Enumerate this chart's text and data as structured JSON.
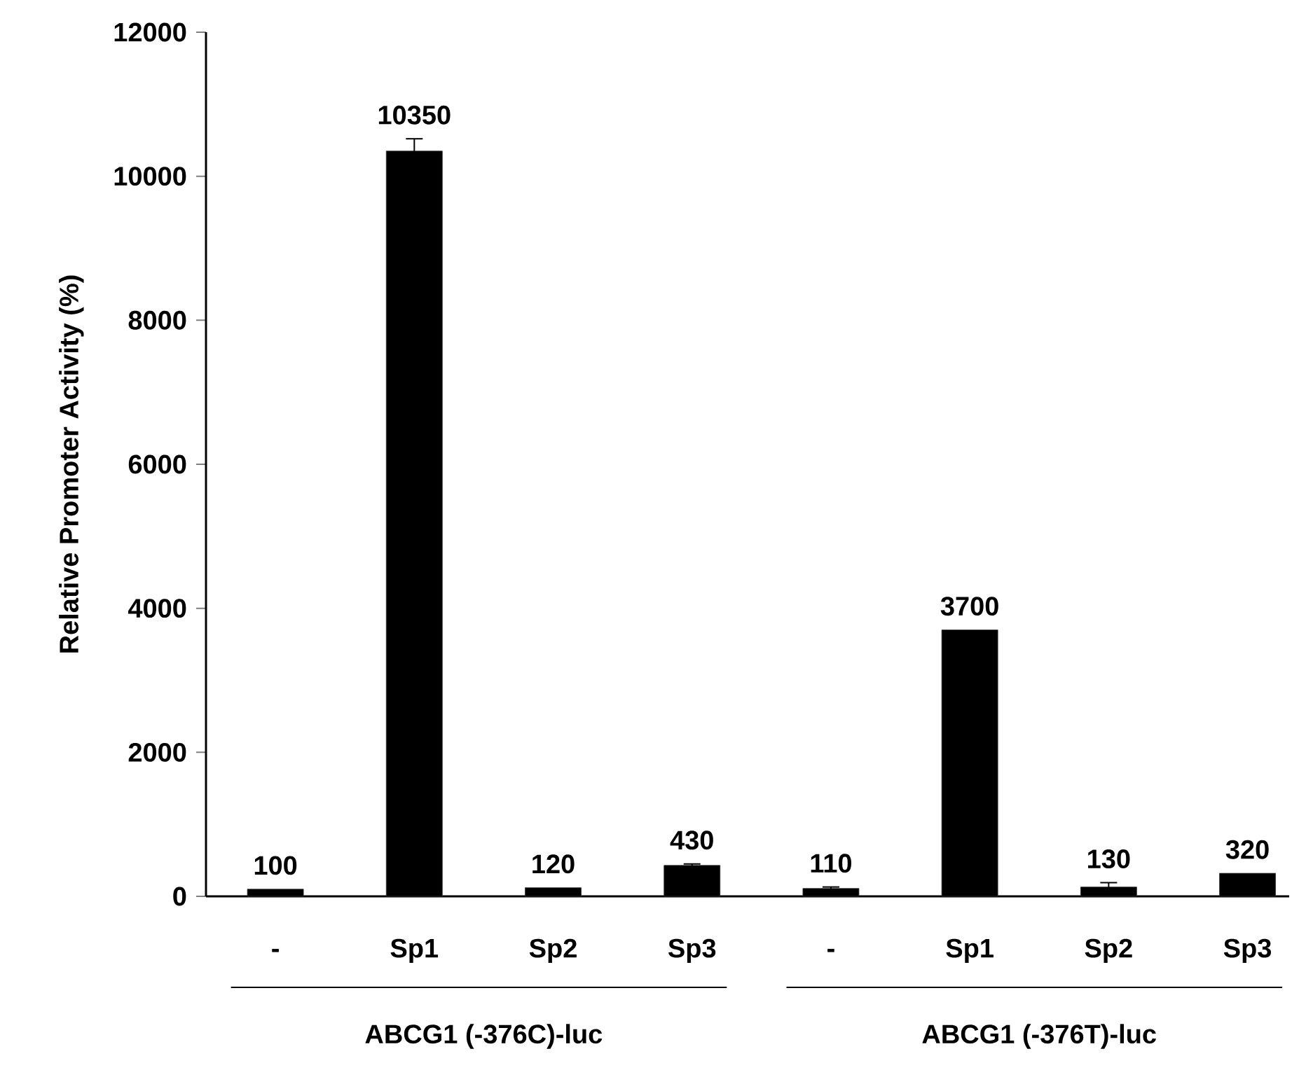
{
  "chart_data": {
    "type": "bar",
    "ylabel": "Relative Promoter Activity (%)",
    "categories": [
      "-",
      "Sp1",
      "Sp2",
      "Sp3",
      "-",
      "Sp1",
      "Sp2",
      "Sp3"
    ],
    "values": [
      100,
      10350,
      120,
      430,
      110,
      3700,
      130,
      320
    ],
    "errors": [
      null,
      170,
      null,
      20,
      20,
      null,
      60,
      null
    ],
    "color": "#000000",
    "ylim": [
      0,
      12000
    ],
    "yticks": [
      0,
      2000,
      4000,
      6000,
      8000,
      10000,
      12000
    ],
    "data_labels": true,
    "annotations": [
      "ABCG1 (-376C)-luc",
      "ABCG1 (-376T)-luc"
    ]
  }
}
